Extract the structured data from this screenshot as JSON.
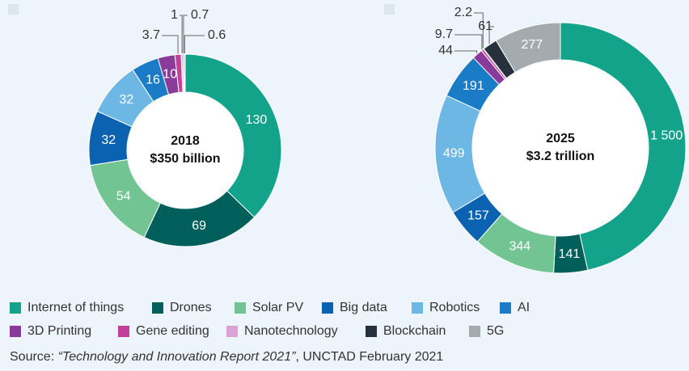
{
  "chart_data": [
    {
      "type": "pie",
      "title": "2018",
      "subtitle": "$350 billion",
      "values": [
        130,
        69,
        54,
        32,
        32,
        16,
        10,
        3.7,
        1,
        0.7,
        0.6
      ]
    },
    {
      "type": "pie",
      "title": "2025",
      "subtitle": "$3.2 trillion",
      "values": [
        1500,
        141,
        344,
        157,
        499,
        191,
        44,
        9.7,
        2.2,
        61,
        277
      ],
      "value_labels": [
        "1 500",
        "141",
        "344",
        "157",
        "499",
        "191",
        "44",
        "9.7",
        "2.2",
        "61",
        "277"
      ]
    }
  ],
  "legend": {
    "labels": [
      "Internet of things",
      "Drones",
      "Solar PV",
      "Big data",
      "Robotics",
      "AI",
      "3D Printing",
      "Gene editing",
      "Nanotechnology",
      "Blockchain",
      "5G"
    ],
    "colors": [
      "#13a38b",
      "#005e5b",
      "#72c593",
      "#0b62b0",
      "#6db7e5",
      "#1a7cc6",
      "#8a3b99",
      "#c2409a",
      "#d9a3d3",
      "#27313d",
      "#a3abaf"
    ]
  },
  "source": {
    "prefix": "Source: ",
    "title": "“Technology and Innovation Report 2021”",
    "suffix": ", UNCTAD February 2021"
  }
}
